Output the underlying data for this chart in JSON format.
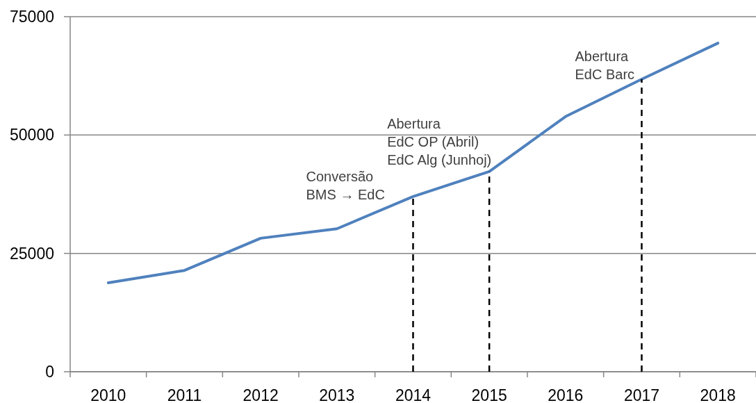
{
  "chart_data": {
    "type": "line",
    "categories": [
      "2010",
      "2011",
      "2012",
      "2013",
      "2014",
      "2015",
      "2016",
      "2017",
      "2018"
    ],
    "series": [
      {
        "color": "#4f81bd",
        "values": [
          18800,
          21400,
          28200,
          30200,
          37000,
          42300,
          53900,
          61800,
          69400
        ]
      }
    ],
    "ylim": [
      0,
      75000
    ],
    "yticks": [
      0,
      25000,
      50000,
      75000
    ],
    "grid": "y",
    "marker": "none",
    "line_style": "solid",
    "ref_lines": [
      {
        "axis": "x",
        "value": "2014",
        "label": "Conversão\nBMS → EdC",
        "color": "#000000",
        "line_style": "dashed"
      },
      {
        "axis": "x",
        "value": "2015",
        "label": "Abertura\nEdC OP (Abril)\nEdC Alg (Junhoj)",
        "color": "#000000",
        "line_style": "dashed"
      },
      {
        "axis": "x",
        "value": "2017",
        "label": "Abertura\nEdC Barc",
        "color": "#000000",
        "line_style": "dashed"
      }
    ]
  }
}
